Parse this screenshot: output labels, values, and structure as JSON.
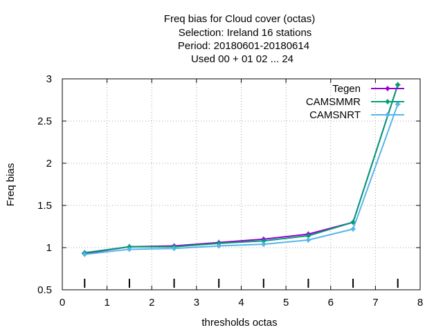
{
  "chart_data": {
    "type": "line",
    "title_lines": [
      "Freq bias  for Cloud cover (octas)",
      "Selection: Ireland      16 stations",
      "Period: 20180601-20180614",
      "Used  00 + 01 02 ... 24"
    ],
    "xlabel": "thresholds octas",
    "ylabel": "Freq bias",
    "xlim": [
      0,
      8
    ],
    "ylim": [
      0.5,
      3
    ],
    "xticks": [
      "0",
      "1",
      "2",
      "3",
      "4",
      "5",
      "6",
      "7",
      "8"
    ],
    "yticks": [
      "0.5",
      "1",
      "1.5",
      "2",
      "2.5",
      "3"
    ],
    "grid": true,
    "legend_position": "top-right",
    "x": [
      0.5,
      1.5,
      2.5,
      3.5,
      4.5,
      5.5,
      6.5,
      7.5
    ],
    "series": [
      {
        "name": "Tegen",
        "color": "#9400d3",
        "values": [
          0.93,
          1.01,
          1.02,
          1.06,
          1.1,
          1.16,
          1.3,
          2.93
        ]
      },
      {
        "name": "CAMSMMR",
        "color": "#009e73",
        "values": [
          0.94,
          1.01,
          1.01,
          1.05,
          1.08,
          1.14,
          1.3,
          2.93
        ]
      },
      {
        "name": "CAMSNRT",
        "color": "#56b4e9",
        "values": [
          0.92,
          0.98,
          0.99,
          1.02,
          1.04,
          1.09,
          1.22,
          2.7
        ]
      }
    ]
  }
}
